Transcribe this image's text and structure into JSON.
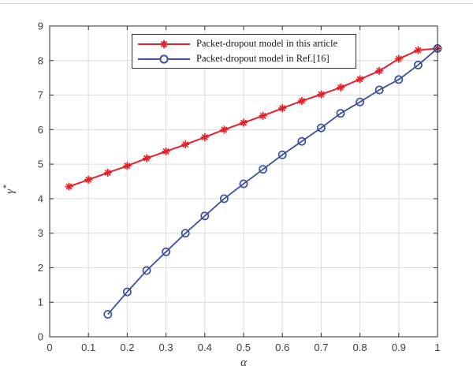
{
  "figure": {
    "background": "#ffffff"
  },
  "chart_data": {
    "type": "line",
    "title": "",
    "xlabel": "α",
    "ylabel": "γ*",
    "xlim": [
      0,
      1
    ],
    "ylim": [
      0,
      9
    ],
    "xticks": [
      0,
      0.1,
      0.2,
      0.3,
      0.4,
      0.5,
      0.6,
      0.7,
      0.8,
      0.9,
      1
    ],
    "xtick_labels": [
      "0",
      "0.1",
      "0.2",
      "0.3",
      "0.4",
      "0.5",
      "0.6",
      "0.7",
      "0.8",
      "0.9",
      "1"
    ],
    "yticks": [
      0,
      1,
      2,
      3,
      4,
      5,
      6,
      7,
      8,
      9
    ],
    "ytick_labels": [
      "0",
      "1",
      "2",
      "3",
      "4",
      "5",
      "6",
      "7",
      "8",
      "9"
    ],
    "grid": true,
    "box": true,
    "legend_position": "top-center-inside",
    "series": [
      {
        "name": "Packet-dropout model in this article",
        "color": "#e62129",
        "marker": "asterisk",
        "line_width": 2,
        "x": [
          0.05,
          0.1,
          0.15,
          0.2,
          0.25,
          0.3,
          0.35,
          0.4,
          0.45,
          0.5,
          0.55,
          0.6,
          0.65,
          0.7,
          0.75,
          0.8,
          0.85,
          0.9,
          0.95,
          1.0
        ],
        "y": [
          4.35,
          4.55,
          4.75,
          4.95,
          5.17,
          5.37,
          5.57,
          5.78,
          6.0,
          6.2,
          6.4,
          6.62,
          6.83,
          7.02,
          7.22,
          7.46,
          7.7,
          8.05,
          8.3,
          8.35
        ]
      },
      {
        "name": "Packet-dropout model in Ref.[16]",
        "color": "#3950a4",
        "marker": "circle",
        "line_width": 1.8,
        "x": [
          0.15,
          0.2,
          0.25,
          0.3,
          0.35,
          0.4,
          0.45,
          0.5,
          0.55,
          0.6,
          0.65,
          0.7,
          0.75,
          0.8,
          0.85,
          0.9,
          0.95,
          1.0
        ],
        "y": [
          0.65,
          1.3,
          1.92,
          2.46,
          3.0,
          3.5,
          4.0,
          4.43,
          4.85,
          5.27,
          5.66,
          6.05,
          6.47,
          6.8,
          7.15,
          7.45,
          7.87,
          8.35
        ]
      }
    ]
  },
  "colors": {
    "grid": "#dcdcdc",
    "axis": "#2e2e2e",
    "tick_label": "#3d3d3d",
    "axis_label": "#333333"
  }
}
